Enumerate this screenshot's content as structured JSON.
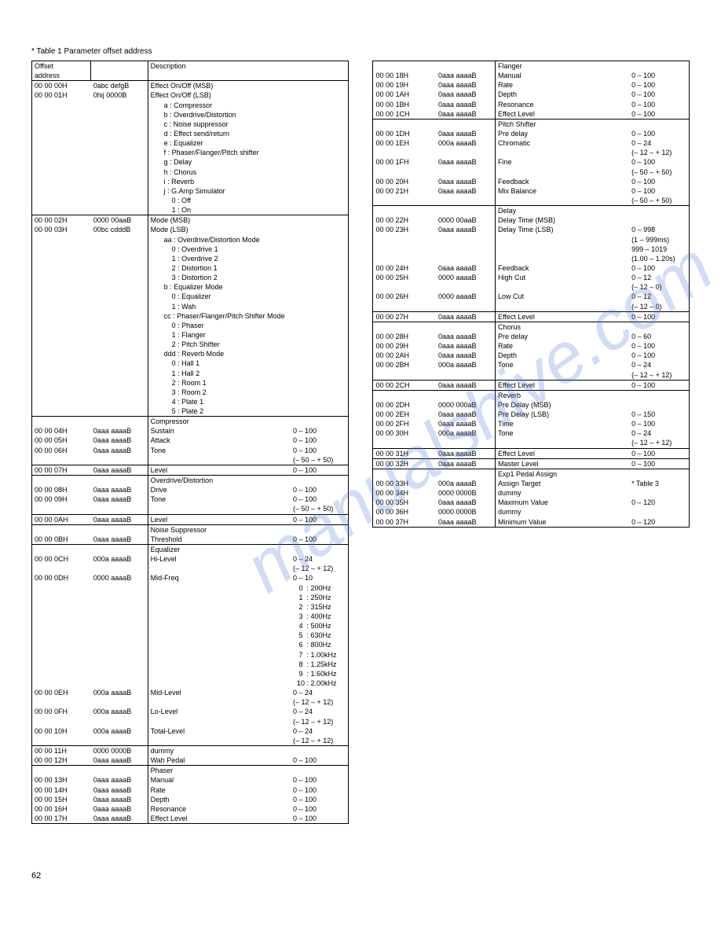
{
  "title": "* Table 1  Parameter offset address",
  "header": {
    "offset": "Offset\naddress",
    "desc": "Description"
  },
  "left": [
    {
      "type": "row",
      "a": "00 00 00H",
      "b": "0abc defgB",
      "d": "Effect On/Off (MSB)",
      "r": ""
    },
    {
      "type": "row",
      "a": "00 00 01H",
      "b": "0hij 0000B",
      "d": "Effect On/Off (LSB)",
      "r": ""
    },
    {
      "type": "sub",
      "d": "a : Compressor"
    },
    {
      "type": "sub",
      "d": "b : Overdrive/Distortion"
    },
    {
      "type": "sub",
      "d": "c : Noise suppressor"
    },
    {
      "type": "sub",
      "d": "d : Effect send/return"
    },
    {
      "type": "sub",
      "d": "e : Equalizer"
    },
    {
      "type": "sub",
      "d": "f : Phaser/Flanger/Pitch shifter"
    },
    {
      "type": "sub",
      "d": "g : Delay"
    },
    {
      "type": "sub",
      "d": "h : Chorus"
    },
    {
      "type": "sub",
      "d": "i : Reverb"
    },
    {
      "type": "sub",
      "d": "j : G.Amp Simulator"
    },
    {
      "type": "sub",
      "d": "    0 : Off"
    },
    {
      "type": "sub",
      "d": "    1 : On",
      "bb": true
    },
    {
      "type": "row",
      "a": "00 00 02H",
      "b": "0000 00aaB",
      "d": "Mode (MSB)",
      "r": ""
    },
    {
      "type": "row",
      "a": "00 00 03H",
      "b": "00bc cdddB",
      "d": "Mode (LSB)",
      "r": ""
    },
    {
      "type": "sub",
      "d": "aa : Overdrive/Distortion Mode"
    },
    {
      "type": "sub",
      "d": "    0 : Overdrive 1"
    },
    {
      "type": "sub",
      "d": "    1 : Overdrive 2"
    },
    {
      "type": "sub",
      "d": "    2 : Distortion 1"
    },
    {
      "type": "sub",
      "d": "    3 : Distortion 2"
    },
    {
      "type": "sub",
      "d": "b : Equalizer Mode"
    },
    {
      "type": "sub",
      "d": "    0 : Equalizer"
    },
    {
      "type": "sub",
      "d": "    1 : Wah"
    },
    {
      "type": "sub",
      "d": "cc : Phaser/Flanger/Pitch Shifter Mode"
    },
    {
      "type": "sub",
      "d": "    0 : Phaser"
    },
    {
      "type": "sub",
      "d": "    1 : Flanger"
    },
    {
      "type": "sub",
      "d": "    2 : Pitch Shifter"
    },
    {
      "type": "sub",
      "d": "ddd : Reverb Mode"
    },
    {
      "type": "sub",
      "d": "    0 : Hall 1"
    },
    {
      "type": "sub",
      "d": "    1 : Hall 2"
    },
    {
      "type": "sub",
      "d": "    2 : Room 1"
    },
    {
      "type": "sub",
      "d": "    3 : Room 2"
    },
    {
      "type": "sub",
      "d": "    4 : Plate 1"
    },
    {
      "type": "sub",
      "d": "    5 : Plate 2",
      "bb": true
    },
    {
      "type": "hdr",
      "d": "Compressor"
    },
    {
      "type": "row",
      "a": "00 00 04H",
      "b": "0aaa aaaaB",
      "d": "Sustain",
      "r": "0 – 100"
    },
    {
      "type": "row",
      "a": "00 00 05H",
      "b": "0aaa aaaaB",
      "d": "Attack",
      "r": "0 – 100"
    },
    {
      "type": "row",
      "a": "00 00 06H",
      "b": "0aaa aaaaB",
      "d": "Tone",
      "r": "0 – 100"
    },
    {
      "type": "sub",
      "d": "",
      "r": "(– 50 – + 50)",
      "bb": true
    },
    {
      "type": "row",
      "a": "00 00 07H",
      "b": "0aaa aaaaB",
      "d": "Level",
      "r": "0 – 100",
      "bb": true
    },
    {
      "type": "hdr",
      "d": "Overdrive/Distortion"
    },
    {
      "type": "row",
      "a": "00 00 08H",
      "b": "0aaa aaaaB",
      "d": "Drive",
      "r": "0 – 100"
    },
    {
      "type": "row",
      "a": "00 00 09H",
      "b": "0aaa aaaaB",
      "d": "Tone",
      "r": "0 – 100"
    },
    {
      "type": "sub",
      "d": "",
      "r": "(– 50 – + 50)",
      "bb": true
    },
    {
      "type": "row",
      "a": "00 00 0AH",
      "b": "0aaa aaaaB",
      "d": "Level",
      "r": "0 – 100",
      "bb": true
    },
    {
      "type": "hdr",
      "d": "Noise Suppressor"
    },
    {
      "type": "row",
      "a": "00 00 0BH",
      "b": "0aaa aaaaB",
      "d": "Threshold",
      "r": "0 – 100",
      "bb": true
    },
    {
      "type": "hdr",
      "d": "Equalizer"
    },
    {
      "type": "row",
      "a": "00 00 0CH",
      "b": "000a aaaaB",
      "d": "Hi-Level",
      "r": "0 – 24"
    },
    {
      "type": "sub",
      "d": "",
      "r": "(– 12 – + 12)"
    },
    {
      "type": "row",
      "a": "00 00 0DH",
      "b": "0000 aaaaB",
      "d": "Mid-Freq",
      "r": "0 – 10"
    },
    {
      "type": "sub",
      "d": "",
      "r": "   0  : 200Hz"
    },
    {
      "type": "sub",
      "d": "",
      "r": "   1  : 250Hz"
    },
    {
      "type": "sub",
      "d": "",
      "r": "   2  : 315Hz"
    },
    {
      "type": "sub",
      "d": "",
      "r": "   3  : 400Hz"
    },
    {
      "type": "sub",
      "d": "",
      "r": "   4  : 500Hz"
    },
    {
      "type": "sub",
      "d": "",
      "r": "   5  : 630Hz"
    },
    {
      "type": "sub",
      "d": "",
      "r": "   6  : 800Hz"
    },
    {
      "type": "sub",
      "d": "",
      "r": "   7  : 1.00kHz"
    },
    {
      "type": "sub",
      "d": "",
      "r": "   8  : 1.25kHz"
    },
    {
      "type": "sub",
      "d": "",
      "r": "   9  : 1.60kHz"
    },
    {
      "type": "sub",
      "d": "",
      "r": "  10 : 2.00kHz"
    },
    {
      "type": "row",
      "a": "00 00 0EH",
      "b": "000a aaaaB",
      "d": "Mid-Level",
      "r": "0 – 24"
    },
    {
      "type": "sub",
      "d": "",
      "r": "(– 12 – + 12)"
    },
    {
      "type": "row",
      "a": "00 00 0FH",
      "b": "000a aaaaB",
      "d": "Lo-Level",
      "r": "0 – 24"
    },
    {
      "type": "sub",
      "d": "",
      "r": "(– 12 – + 12)"
    },
    {
      "type": "row",
      "a": "00 00 10H",
      "b": "000a aaaaB",
      "d": "Total-Level",
      "r": "0 – 24"
    },
    {
      "type": "sub",
      "d": "",
      "r": "(– 12 – + 12)",
      "bb": true
    },
    {
      "type": "row",
      "a": "00 00 11H",
      "b": "0000 0000B",
      "d": "dummy",
      "r": ""
    },
    {
      "type": "row",
      "a": "00 00 12H",
      "b": "0aaa aaaaB",
      "d": "Wah Pedal",
      "r": "0 – 100",
      "bb": true
    },
    {
      "type": "hdr",
      "d": "Phaser"
    },
    {
      "type": "row",
      "a": "00 00 13H",
      "b": "0aaa aaaaB",
      "d": "Manual",
      "r": "0 – 100"
    },
    {
      "type": "row",
      "a": "00 00 14H",
      "b": "0aaa aaaaB",
      "d": "Rate",
      "r": "0 – 100"
    },
    {
      "type": "row",
      "a": "00 00 15H",
      "b": "0aaa aaaaB",
      "d": "Depth",
      "r": "0 – 100"
    },
    {
      "type": "row",
      "a": "00 00 16H",
      "b": "0aaa aaaaB",
      "d": "Resonance",
      "r": "0 – 100"
    },
    {
      "type": "row",
      "a": "00 00 17H",
      "b": "0aaa aaaaB",
      "d": "Effect Level",
      "r": "0 – 100"
    }
  ],
  "right": [
    {
      "type": "hdr",
      "d": "Flanger"
    },
    {
      "type": "row",
      "a": "00 00 18H",
      "b": "0aaa aaaaB",
      "d": "Manual",
      "r": "0 – 100"
    },
    {
      "type": "row",
      "a": "00 00 19H",
      "b": "0aaa aaaaB",
      "d": "Rate",
      "r": "0 – 100"
    },
    {
      "type": "row",
      "a": "00 00 1AH",
      "b": "0aaa aaaaB",
      "d": "Depth",
      "r": "0 – 100"
    },
    {
      "type": "row",
      "a": "00 00 1BH",
      "b": "0aaa aaaaB",
      "d": "Resonance",
      "r": "0 – 100"
    },
    {
      "type": "row",
      "a": "00 00 1CH",
      "b": "0aaa aaaaB",
      "d": "Effect Level",
      "r": "0 – 100",
      "bb": true
    },
    {
      "type": "hdr",
      "d": "Pitch Shifter"
    },
    {
      "type": "row",
      "a": "00 00 1DH",
      "b": "0aaa aaaaB",
      "d": "Pre delay",
      "r": "0 – 100"
    },
    {
      "type": "row",
      "a": "00 00 1EH",
      "b": "000a aaaaB",
      "d": "Chromatic",
      "r": "0 – 24"
    },
    {
      "type": "sub",
      "d": "",
      "r": "(– 12 – + 12)"
    },
    {
      "type": "row",
      "a": "00 00 1FH",
      "b": "0aaa aaaaB",
      "d": "Fine",
      "r": "0 – 100"
    },
    {
      "type": "sub",
      "d": "",
      "r": "(– 50 – + 50)"
    },
    {
      "type": "row",
      "a": "00 00 20H",
      "b": "0aaa aaaaB",
      "d": "Feedback",
      "r": "0 – 100"
    },
    {
      "type": "row",
      "a": "00 00 21H",
      "b": "0aaa aaaaB",
      "d": "Mix Balance",
      "r": "0 – 100"
    },
    {
      "type": "sub",
      "d": "",
      "r": "(– 50 – + 50)",
      "bb": true
    },
    {
      "type": "hdr",
      "d": "Delay"
    },
    {
      "type": "row",
      "a": "00 00 22H",
      "b": "0000 00aaB",
      "d": "Delay Time (MSB)",
      "r": ""
    },
    {
      "type": "row",
      "a": "00 00 23H",
      "b": "0aaa aaaaB",
      "d": "Delay Time (LSB)",
      "r": "0 – 998"
    },
    {
      "type": "sub",
      "d": "",
      "r": "(1 – 999ms)"
    },
    {
      "type": "sub",
      "d": "",
      "r": "999 – 1019"
    },
    {
      "type": "sub",
      "d": "",
      "r": "(1.00 – 1.20s)"
    },
    {
      "type": "row",
      "a": "00 00 24H",
      "b": "0aaa aaaaB",
      "d": "Feedback",
      "r": "0 – 100"
    },
    {
      "type": "row",
      "a": "00 00 25H",
      "b": "0000 aaaaB",
      "d": "High Cut",
      "r": "0 – 12"
    },
    {
      "type": "sub",
      "d": "",
      "r": "(– 12 – 0)"
    },
    {
      "type": "row",
      "a": "00 00 26H",
      "b": "0000 aaaaB",
      "d": "Low Cut",
      "r": "0 – 12"
    },
    {
      "type": "sub",
      "d": "",
      "r": "(– 12 – 0)",
      "bb": true
    },
    {
      "type": "row",
      "a": "00 00 27H",
      "b": "0aaa aaaaB",
      "d": "Effect Level",
      "r": "0 – 100",
      "bb": true
    },
    {
      "type": "hdr",
      "d": "Chorus"
    },
    {
      "type": "row",
      "a": "00 00 28H",
      "b": "0aaa aaaaB",
      "d": "Pre delay",
      "r": "0 – 60"
    },
    {
      "type": "row",
      "a": "00 00 29H",
      "b": "0aaa aaaaB",
      "d": "Rate",
      "r": "0 – 100"
    },
    {
      "type": "row",
      "a": "00 00 2AH",
      "b": "0aaa aaaaB",
      "d": "Depth",
      "r": "0 – 100"
    },
    {
      "type": "row",
      "a": "00 00 2BH",
      "b": "000a aaaaB",
      "d": "Tone",
      "r": "0 – 24"
    },
    {
      "type": "sub",
      "d": "",
      "r": "(– 12 – + 12)",
      "bb": true
    },
    {
      "type": "row",
      "a": "00 00 2CH",
      "b": "0aaa aaaaB",
      "d": "Effect Level",
      "r": "0 – 100",
      "bb": true
    },
    {
      "type": "hdr",
      "d": "Reverb"
    },
    {
      "type": "row",
      "a": "00 00 2DH",
      "b": "0000 000aB",
      "d": "Pre Delay (MSB)",
      "r": ""
    },
    {
      "type": "row",
      "a": "00 00 2EH",
      "b": "0aaa aaaaB",
      "d": "Pre Delay (LSB)",
      "r": "0 – 150"
    },
    {
      "type": "row",
      "a": "00 00 2FH",
      "b": "0aaa aaaaB",
      "d": "Time",
      "r": "0 – 100"
    },
    {
      "type": "row",
      "a": "00 00 30H",
      "b": "000a aaaaB",
      "d": "Tone",
      "r": "0 – 24"
    },
    {
      "type": "sub",
      "d": "",
      "r": "(– 12 – + 12)",
      "bb": true
    },
    {
      "type": "row",
      "a": "00 00 31H",
      "b": "0aaa aaaaB",
      "d": "Effect Level",
      "r": "0 – 100",
      "bb": true
    },
    {
      "type": "row",
      "a": "00 00 32H",
      "b": "0aaa aaaaB",
      "d": "Master Level",
      "r": "0 – 100",
      "bb": true
    },
    {
      "type": "hdr",
      "d": "Exp1 Pedal Assign"
    },
    {
      "type": "row",
      "a": "00 00 33H",
      "b": "000a aaaaB",
      "d": "Assign Target",
      "r": "* Table 3"
    },
    {
      "type": "row",
      "a": "00 00 34H",
      "b": "0000 0000B",
      "d": "dummy",
      "r": ""
    },
    {
      "type": "row",
      "a": "00 00 35H",
      "b": "0aaa aaaaB",
      "d": "Maximum Value",
      "r": "0 – 120"
    },
    {
      "type": "row",
      "a": "00 00 36H",
      "b": "0000 0000B",
      "d": "dummy",
      "r": ""
    },
    {
      "type": "row",
      "a": "00 00 37H",
      "b": "0aaa aaaaB",
      "d": "Minimum Value",
      "r": "0 – 120"
    }
  ],
  "pagenum": "62"
}
